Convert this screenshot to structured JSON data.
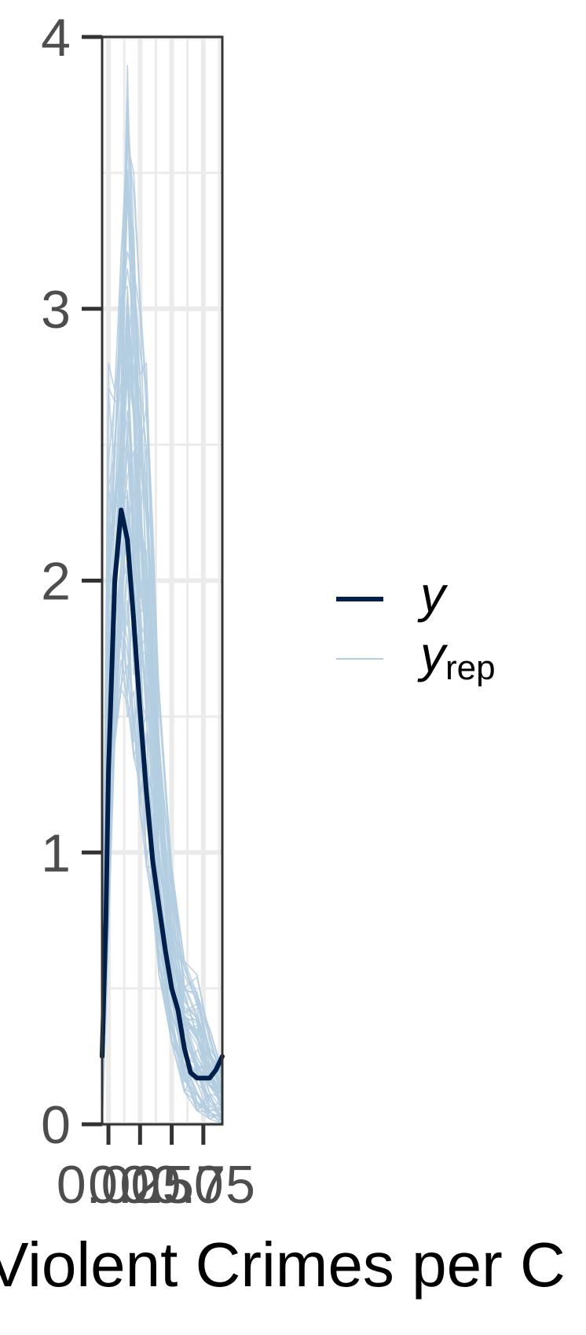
{
  "chart_data": {
    "type": "line",
    "title": "",
    "xlabel": "Violent Crimes per C",
    "ylabel": "",
    "xlim": [
      -0.05,
      0.9
    ],
    "ylim": [
      0,
      4
    ],
    "y_ticks": [
      0,
      1,
      2,
      3,
      4
    ],
    "y_tick_labels": [
      "0",
      "1",
      "2",
      "3",
      "4"
    ],
    "x_ticks": [
      0,
      0.25,
      0.5,
      0.75
    ],
    "x_tick_labels": [
      "0.00",
      "0.25",
      "0.50",
      "0.75"
    ],
    "grid": true,
    "legend_position": "right",
    "colors": {
      "y": "#011f4b",
      "y_rep": "#b3cde0",
      "axis": "#333333",
      "grid": "#ebebeb",
      "panel_border": "#333333"
    },
    "legend": {
      "y_label": "y",
      "y_rep_label": "y",
      "y_rep_subscript": "rep"
    },
    "series": [
      {
        "name": "y",
        "x": [
          -0.05,
          -0.02,
          0.0,
          0.05,
          0.1,
          0.15,
          0.2,
          0.25,
          0.3,
          0.35,
          0.4,
          0.45,
          0.5,
          0.55,
          0.6,
          0.65,
          0.7,
          0.75,
          0.8,
          0.85,
          0.9
        ],
        "y": [
          0.25,
          0.75,
          1.3,
          2.0,
          2.26,
          2.15,
          1.85,
          1.52,
          1.22,
          0.97,
          0.8,
          0.64,
          0.5,
          0.42,
          0.28,
          0.19,
          0.17,
          0.17,
          0.17,
          0.2,
          0.25
        ]
      }
    ],
    "y_rep_envelope": {
      "description_free": true,
      "x": [
        -0.05,
        0.0,
        0.05,
        0.1,
        0.15,
        0.2,
        0.25,
        0.3,
        0.35,
        0.4,
        0.5,
        0.6,
        0.7,
        0.8,
        0.9
      ],
      "low": [
        0.0,
        0.7,
        1.4,
        1.6,
        1.5,
        1.35,
        1.15,
        0.95,
        0.8,
        0.55,
        0.3,
        0.12,
        0.05,
        0.02,
        0.0
      ],
      "high": [
        0.4,
        2.8,
        2.7,
        3.2,
        4.05,
        3.5,
        3.05,
        2.8,
        2.2,
        1.6,
        0.95,
        0.6,
        0.55,
        0.35,
        0.2
      ]
    }
  }
}
